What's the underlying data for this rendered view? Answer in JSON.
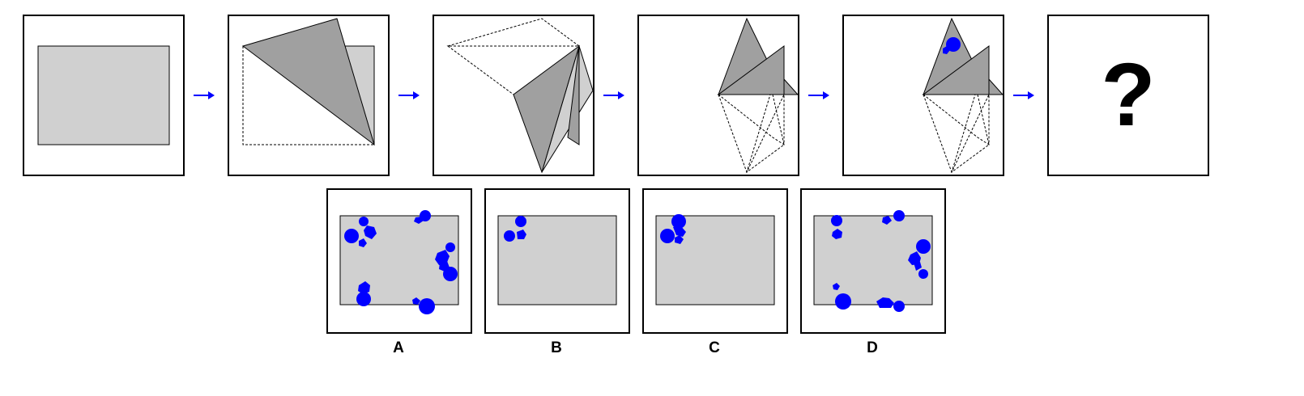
{
  "puzzle": {
    "question_mark": "?",
    "colors": {
      "paper": "#d0d0d0",
      "folded": "#a0a0a0",
      "holes": "#0000ff",
      "arrow": "#0000ff",
      "outline": "#000000"
    }
  },
  "options": [
    {
      "label": "A"
    },
    {
      "label": "B"
    },
    {
      "label": "C"
    },
    {
      "label": "D"
    }
  ]
}
